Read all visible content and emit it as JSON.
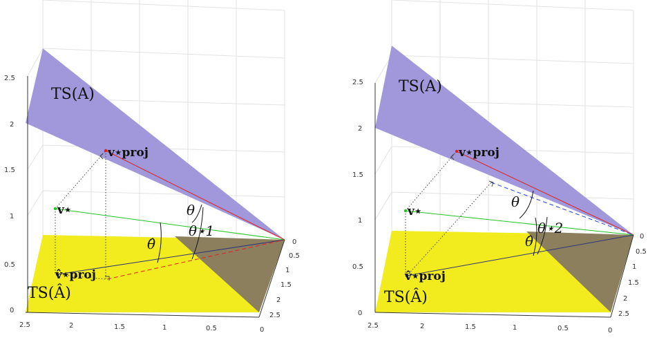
{
  "colors": {
    "plane_TS_A": "#9b92d9",
    "plane_TS_A_hat": "#f2ec1e",
    "overlap": "#8c7f5e",
    "line_red": "#e02020",
    "line_green": "#22c422",
    "line_navy": "#2c3478",
    "dashed_red": "#e02020",
    "dashed_blue": "#1f3fe8",
    "grid": "#e2e2e2",
    "axis": "#333333"
  },
  "panels": [
    {
      "id": "left",
      "labels": {
        "ts_a": "TS(A)",
        "ts_a_hat": "TS(Â)",
        "v_proj": "v⋆proj",
        "v": "v⋆",
        "v_hat_proj": "v̂⋆proj",
        "theta": "θ",
        "theta_star": "θ⋆1",
        "theta_hat": "θ̂"
      },
      "y_axis_ticks": [
        "0",
        "0.5",
        "1",
        "1.5",
        "2",
        "2.5"
      ],
      "x_axis_ticks": [
        "2.5",
        "2",
        "1.5",
        "1",
        "0.5",
        "0"
      ],
      "depth_axis_ticks": [
        "0",
        "0.5",
        "1",
        "1.5",
        "2",
        "2.5"
      ]
    },
    {
      "id": "right",
      "labels": {
        "ts_a": "TS(A)",
        "ts_a_hat": "TS(Â)",
        "v_proj": "v⋆proj",
        "v": "v⋆",
        "v_hat_proj": "v̂⋆proj",
        "theta": "θ",
        "theta_star": "θ⋆2",
        "theta_hat": "θ̂"
      },
      "y_axis_ticks": [
        "0",
        "0.5",
        "1",
        "1.5",
        "2",
        "2.5"
      ],
      "x_axis_ticks": [
        "2.5",
        "2",
        "1.5",
        "1",
        "0.5",
        "0"
      ],
      "depth_axis_ticks": [
        "0",
        "0.5",
        "1",
        "1.5",
        "2",
        "2.5"
      ]
    }
  ]
}
